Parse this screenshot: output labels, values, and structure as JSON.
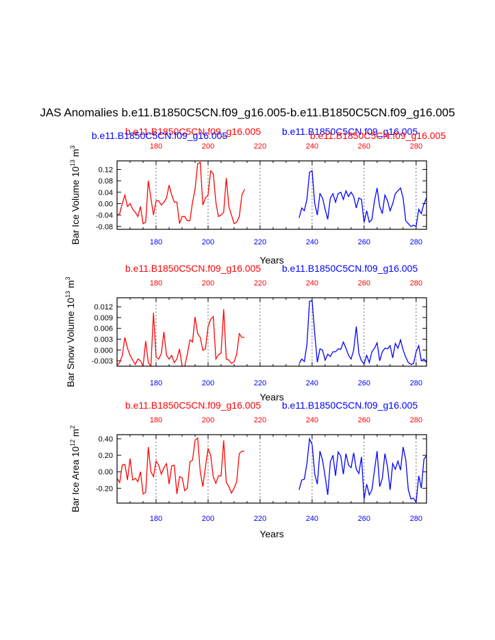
{
  "title": "JAS Anomalies b.e11.B1850C5CN.f09_g16.005-b.e11.B1850C5CN.f09_g16.005",
  "colors": {
    "series_a": "#ff0000",
    "series_b": "#0000ff",
    "axis": "#000000",
    "grid": "#555555"
  },
  "chart_data": [
    {
      "type": "line",
      "ylabel_main": "Bar Ice Volume 10",
      "ylabel_exp": "13",
      "ylabel_unit": " m",
      "ylabel_unit_exp": "3",
      "xlabel": "Years",
      "top_label_left": "b.e11.B1850C5CN.f09_g16.005",
      "top_label_right": "b.e11.B1850C5CN.f09_g16.005",
      "top_label_left_under": "b.e11.B1850C5CN.f09_g16.005",
      "top_label_right_under": "b.e11.B1850C5CN.f09_g16.005",
      "xlim": [
        165,
        284
      ],
      "ylim": [
        -0.09,
        0.15
      ],
      "yticks": [
        0.12,
        0.08,
        0.04,
        0.0,
        -0.04,
        -0.08
      ],
      "ytick_labels": [
        "0.12",
        "0.08",
        "0.04",
        "0.00",
        "-0.04",
        "-0.08"
      ],
      "xticks": [
        180,
        200,
        220,
        240,
        260,
        280
      ],
      "top_tick_labels": [
        "180",
        "200",
        "220",
        "240",
        "260",
        "280"
      ],
      "bottom_tick_labels": [
        "180",
        "200",
        "220",
        "240",
        "260",
        "280"
      ],
      "series": [
        {
          "name": "b.e11.B1850C5CN.f09_g16.005",
          "color": "#ff0000",
          "x": [
            165,
            166,
            167,
            168,
            169,
            170,
            171,
            172,
            173,
            174,
            175,
            176,
            177,
            178,
            179,
            180,
            181,
            182,
            183,
            184,
            185,
            186,
            187,
            188,
            189,
            190,
            191,
            192,
            193,
            194,
            195,
            196,
            197,
            198,
            199,
            200,
            201,
            202,
            203,
            204,
            205,
            206,
            207,
            208,
            209,
            210,
            211,
            212,
            213,
            214
          ],
          "y": [
            -0.04,
            -0.035,
            0.0,
            0.03,
            -0.01,
            0.0,
            -0.02,
            -0.03,
            -0.045,
            -0.01,
            -0.07,
            -0.065,
            0.08,
            0.02,
            -0.04,
            0.01,
            0.01,
            -0.005,
            0.005,
            0.02,
            0.065,
            0.03,
            0.005,
            0.005,
            -0.07,
            -0.045,
            -0.045,
            -0.06,
            -0.06,
            0.005,
            0.05,
            0.14,
            0.145,
            -0.005,
            0.02,
            0.03,
            0.115,
            0.105,
            0.005,
            -0.045,
            -0.04,
            -0.03,
            0.09,
            -0.01,
            -0.04,
            -0.07,
            -0.065,
            -0.045,
            0.03,
            0.05
          ]
        },
        {
          "name": "b.e11.B1850C5CN.f09_g16.005",
          "color": "#0000ff",
          "x": [
            235,
            236,
            237,
            238,
            239,
            240,
            241,
            242,
            243,
            244,
            245,
            246,
            247,
            248,
            249,
            250,
            251,
            252,
            253,
            254,
            255,
            256,
            257,
            258,
            259,
            260,
            261,
            262,
            263,
            264,
            265,
            266,
            267,
            268,
            269,
            270,
            271,
            272,
            273,
            274,
            275,
            276,
            277,
            278,
            279,
            280,
            281,
            282,
            283,
            284
          ],
          "y": [
            -0.05,
            -0.015,
            -0.025,
            0.015,
            0.11,
            0.115,
            0.0,
            -0.04,
            0.035,
            0.02,
            -0.02,
            -0.055,
            0.02,
            0.035,
            0.005,
            0.035,
            0.04,
            0.015,
            0.045,
            0.025,
            0.04,
            0.025,
            -0.015,
            0.02,
            0.015,
            -0.065,
            -0.025,
            -0.065,
            -0.055,
            0.01,
            0.055,
            -0.01,
            -0.035,
            0.03,
            0.01,
            -0.025,
            0.0,
            0.035,
            0.045,
            0.055,
            0.02,
            -0.06,
            -0.07,
            -0.08,
            -0.075,
            -0.08,
            -0.02,
            -0.035,
            0.0,
            0.02
          ]
        }
      ]
    },
    {
      "type": "line",
      "ylabel_main": "Bar Snow Volume 10",
      "ylabel_exp": "13",
      "ylabel_unit": " m",
      "ylabel_unit_exp": "3",
      "xlabel": "Years",
      "top_label_left": "b.e11.B1850C5CN.f09_g16.005",
      "top_label_right": "b.e11.B1850C5CN.f09_g16.005",
      "xlim": [
        165,
        284
      ],
      "ylim": [
        -0.0045,
        0.0145
      ],
      "yticks": [
        0.012,
        0.009,
        0.006,
        0.003,
        0.0,
        -0.003
      ],
      "ytick_labels": [
        "0.012",
        "0.009",
        "0.006",
        "0.003",
        "0.000",
        "-0.003"
      ],
      "xticks": [
        180,
        200,
        220,
        240,
        260,
        280
      ],
      "top_tick_labels": [
        "180",
        "200",
        "220",
        "240",
        "260",
        "280"
      ],
      "bottom_tick_labels": [
        "180",
        "200",
        "220",
        "240",
        "260",
        "280"
      ],
      "series": [
        {
          "name": "b.e11.B1850C5CN.f09_g16.005",
          "color": "#ff0000",
          "x": [
            165,
            166,
            167,
            168,
            169,
            170,
            171,
            172,
            173,
            174,
            175,
            176,
            177,
            178,
            179,
            180,
            181,
            182,
            183,
            184,
            185,
            186,
            187,
            188,
            189,
            190,
            191,
            192,
            193,
            194,
            195,
            196,
            197,
            198,
            199,
            200,
            201,
            202,
            203,
            204,
            205,
            206,
            207,
            208,
            209,
            210,
            211,
            212,
            213,
            214
          ],
          "y": [
            -0.0043,
            -0.0035,
            -0.0015,
            0.0035,
            0.0005,
            -0.0015,
            -0.0028,
            -0.004,
            -0.0025,
            -0.003,
            -0.0045,
            0.0025,
            -0.0035,
            -0.0045,
            0.0103,
            -0.002,
            -0.0025,
            -0.001,
            0.005,
            -0.0015,
            -0.0025,
            -0.0015,
            -0.0035,
            -0.0025,
            0.0003,
            -0.0045,
            -0.0045,
            -0.0012,
            0.0028,
            0.0022,
            0.0092,
            0.0045,
            0.0035,
            -0.0001,
            0.0003,
            0.0065,
            0.0085,
            0.0093,
            -0.0025,
            -0.0013,
            -0.0009,
            0.0113,
            -0.0025,
            -0.0028,
            -0.0037,
            -0.0033,
            -0.0012,
            0.0045,
            0.0035,
            0.0035
          ]
        },
        {
          "name": "b.e11.B1850C5CN.f09_g16.005",
          "color": "#0000ff",
          "x": [
            235,
            236,
            237,
            238,
            239,
            240,
            241,
            242,
            243,
            244,
            245,
            246,
            247,
            248,
            249,
            250,
            251,
            252,
            253,
            254,
            255,
            256,
            257,
            258,
            259,
            260,
            261,
            262,
            263,
            264,
            265,
            266,
            267,
            268,
            269,
            270,
            271,
            272,
            273,
            274,
            275,
            276,
            277,
            278,
            279,
            280,
            281,
            282,
            283,
            284
          ],
          "y": [
            -0.0038,
            -0.0025,
            -0.0032,
            0.0015,
            0.0135,
            0.0137,
            0.0045,
            -0.0034,
            0.0003,
            0.0,
            -0.0028,
            -0.0012,
            -0.0018,
            -0.0005,
            -0.0005,
            0.0003,
            0.0002,
            0.0022,
            0.0005,
            -0.0015,
            -0.0025,
            0.0,
            0.0065,
            -0.001,
            -0.003,
            -0.0038,
            -0.0015,
            -0.0035,
            -0.0005,
            0.0005,
            0.002,
            -0.003,
            -0.0005,
            0.0005,
            0.0003,
            0.0012,
            -0.0022,
            0.0018,
            0.0005,
            0.0028,
            0.0,
            -0.002,
            -0.0035,
            -0.004,
            -0.0038,
            -0.0005,
            0.0012,
            -0.003,
            -0.0025,
            -0.0035
          ]
        }
      ]
    },
    {
      "type": "line",
      "ylabel_main": "Bar Ice Area 10",
      "ylabel_exp": "12",
      "ylabel_unit": " m",
      "ylabel_unit_exp": "2",
      "xlabel": "Years",
      "top_label_left": "b.e11.B1850C5CN.f09_g16.005",
      "top_label_right": "b.e11.B1850C5CN.f09_g16.005",
      "xlim": [
        165,
        284
      ],
      "ylim": [
        -0.38,
        0.45
      ],
      "yticks": [
        0.4,
        0.2,
        0.0,
        -0.2
      ],
      "ytick_labels": [
        "0.40",
        "0.20",
        "0.00",
        "-0.20"
      ],
      "xticks": [
        180,
        200,
        220,
        240,
        260,
        280
      ],
      "top_tick_labels": [
        "180",
        "200",
        "220",
        "240",
        "260",
        "280"
      ],
      "bottom_tick_labels": [
        "180",
        "200",
        "220",
        "240",
        "260",
        "280"
      ],
      "series": [
        {
          "name": "b.e11.B1850C5CN.f09_g16.005",
          "color": "#ff0000",
          "x": [
            165,
            166,
            167,
            168,
            169,
            170,
            171,
            172,
            173,
            174,
            175,
            176,
            177,
            178,
            179,
            180,
            181,
            182,
            183,
            184,
            185,
            186,
            187,
            188,
            189,
            190,
            191,
            192,
            193,
            194,
            195,
            196,
            197,
            198,
            199,
            200,
            201,
            202,
            203,
            204,
            205,
            206,
            207,
            208,
            209,
            210,
            211,
            212,
            213,
            214
          ],
          "y": [
            -0.08,
            -0.13,
            0.08,
            0.09,
            -0.1,
            0.16,
            -0.1,
            -0.08,
            -0.12,
            0.0,
            -0.27,
            -0.25,
            0.3,
            0.0,
            -0.06,
            0.13,
            0.08,
            -0.03,
            0.05,
            0.1,
            -0.15,
            0.07,
            0.08,
            -0.27,
            -0.06,
            -0.07,
            -0.23,
            -0.2,
            0.12,
            0.14,
            0.38,
            0.41,
            0.0,
            -0.18,
            0.06,
            0.28,
            0.2,
            -0.06,
            -0.14,
            -0.05,
            -0.05,
            0.38,
            -0.13,
            -0.18,
            -0.26,
            -0.2,
            -0.12,
            0.22,
            0.25,
            0.25
          ]
        },
        {
          "name": "b.e11.B1850C5CN.f09_g16.005",
          "color": "#0000ff",
          "x": [
            235,
            236,
            237,
            238,
            239,
            240,
            241,
            242,
            243,
            244,
            245,
            246,
            247,
            248,
            249,
            250,
            251,
            252,
            253,
            254,
            255,
            256,
            257,
            258,
            259,
            260,
            261,
            262,
            263,
            264,
            265,
            266,
            267,
            268,
            269,
            270,
            271,
            272,
            273,
            274,
            275,
            276,
            277,
            278,
            279,
            280,
            281,
            282,
            283,
            284
          ],
          "y": [
            -0.22,
            -0.1,
            -0.09,
            0.1,
            0.4,
            0.33,
            -0.03,
            -0.15,
            0.25,
            0.14,
            -0.06,
            -0.28,
            0.12,
            0.2,
            -0.05,
            0.24,
            0.19,
            -0.03,
            0.22,
            0.08,
            0.05,
            0.23,
            0.03,
            -0.02,
            0.18,
            -0.33,
            -0.15,
            -0.28,
            -0.22,
            0.02,
            0.25,
            -0.18,
            -0.08,
            0.22,
            0.06,
            -0.22,
            0.1,
            0.03,
            0.13,
            0.02,
            0.3,
            0.15,
            -0.22,
            -0.33,
            -0.32,
            -0.37,
            -0.05,
            -0.2,
            0.15,
            0.2
          ]
        }
      ]
    }
  ]
}
